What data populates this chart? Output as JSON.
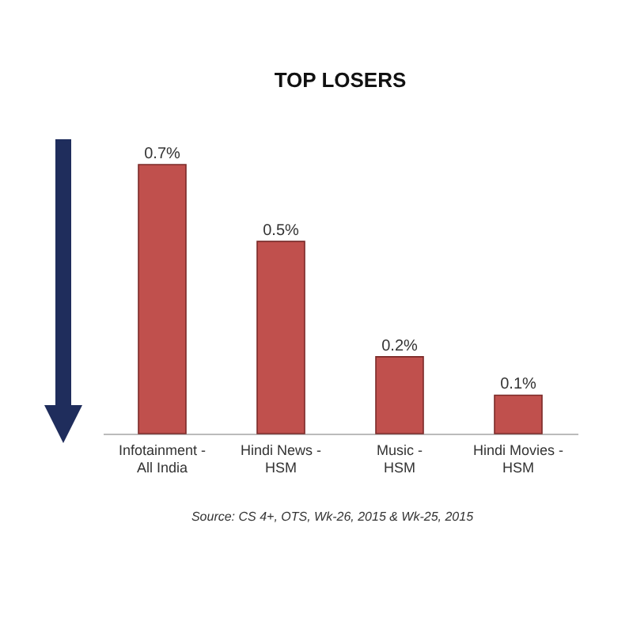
{
  "chart_data": {
    "type": "bar",
    "title": "TOP LOSERS",
    "categories": [
      "Infotainment - All India",
      "Hindi News - HSM",
      "Music - HSM",
      "Hindi Movies - HSM"
    ],
    "values": [
      0.7,
      0.5,
      0.2,
      0.1
    ],
    "value_labels": [
      "0.7%",
      "0.5%",
      "0.2%",
      "0.1%"
    ],
    "color": "#c0504d",
    "annotations": [
      "Source: CS 4+,  OTS, Wk-26, 2015 & Wk-25, 2015"
    ]
  }
}
